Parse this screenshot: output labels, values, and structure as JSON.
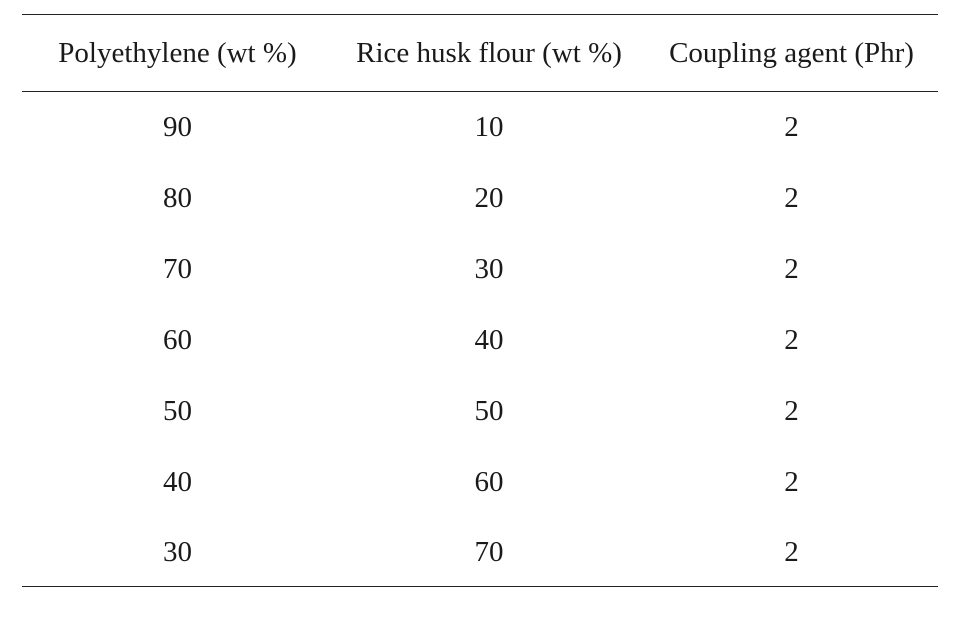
{
  "table": {
    "headers": [
      "Polyethylene (wt %)",
      "Rice husk flour (wt %)",
      "Coupling agent (Phr)"
    ],
    "rows": [
      [
        "90",
        "10",
        "2"
      ],
      [
        "80",
        "20",
        "2"
      ],
      [
        "70",
        "30",
        "2"
      ],
      [
        "60",
        "40",
        "2"
      ],
      [
        "50",
        "50",
        "2"
      ],
      [
        "40",
        "60",
        "2"
      ],
      [
        "30",
        "70",
        "2"
      ]
    ]
  }
}
